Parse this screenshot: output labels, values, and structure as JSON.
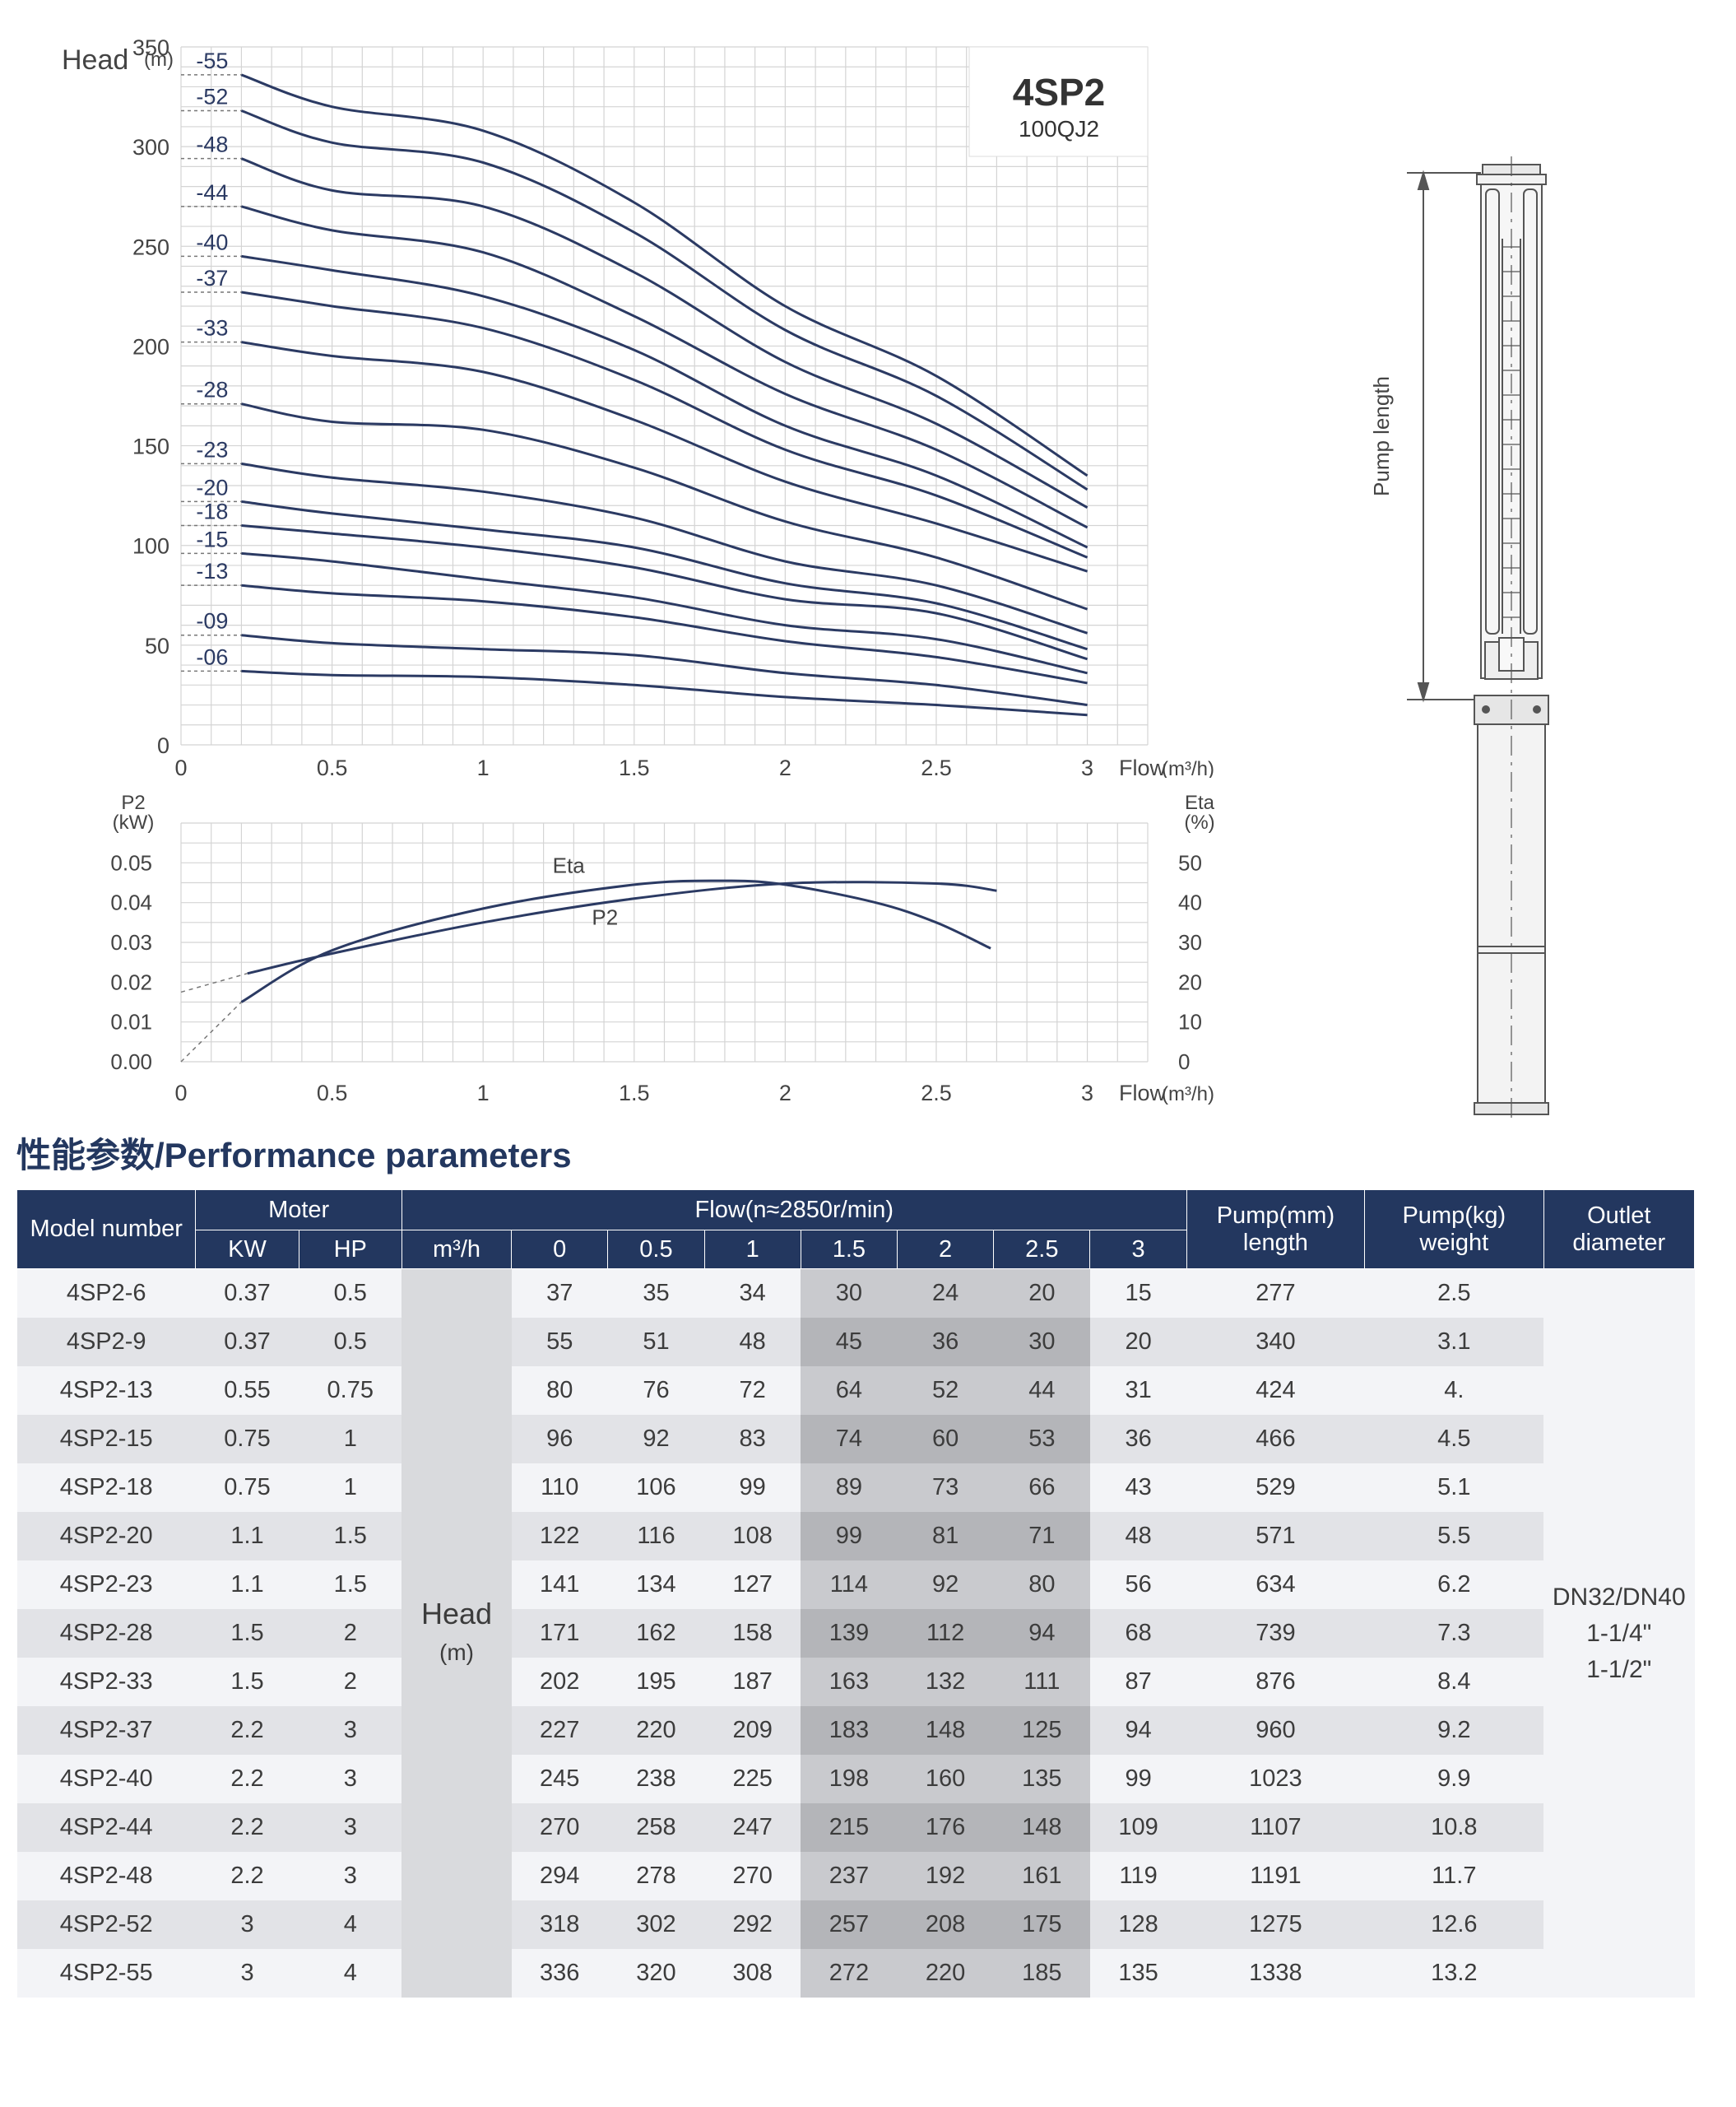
{
  "chart_data": [
    {
      "type": "line",
      "title": "4SP2",
      "subtitle": "100QJ2",
      "ylabel": "Head",
      "ylabel_unit": "(m)",
      "xlabel": "Flow",
      "xlabel_unit": "(m³/h)",
      "xlim": [
        0,
        3.2
      ],
      "ylim": [
        0,
        350
      ],
      "x_ticks": [
        0,
        0.5,
        1,
        1.5,
        2,
        2.5,
        3
      ],
      "y_ticks": [
        0,
        50,
        100,
        150,
        200,
        250,
        300,
        350
      ],
      "grid": true,
      "x": [
        0,
        0.5,
        1,
        1.5,
        2,
        2.5,
        3
      ],
      "series": [
        {
          "name": "-55",
          "values": [
            336,
            320,
            308,
            272,
            220,
            185,
            135
          ]
        },
        {
          "name": "-52",
          "values": [
            318,
            302,
            292,
            257,
            208,
            175,
            128
          ]
        },
        {
          "name": "-48",
          "values": [
            294,
            278,
            270,
            237,
            192,
            161,
            119
          ]
        },
        {
          "name": "-44",
          "values": [
            270,
            258,
            247,
            215,
            176,
            148,
            109
          ]
        },
        {
          "name": "-40",
          "values": [
            245,
            238,
            225,
            198,
            160,
            135,
            99
          ]
        },
        {
          "name": "-37",
          "values": [
            227,
            220,
            209,
            183,
            148,
            125,
            94
          ]
        },
        {
          "name": "-33",
          "values": [
            202,
            195,
            187,
            163,
            132,
            111,
            87
          ]
        },
        {
          "name": "-28",
          "values": [
            171,
            162,
            158,
            139,
            112,
            94,
            68
          ]
        },
        {
          "name": "-23",
          "values": [
            141,
            134,
            127,
            114,
            92,
            80,
            56
          ]
        },
        {
          "name": "-20",
          "values": [
            122,
            116,
            108,
            99,
            81,
            71,
            48
          ]
        },
        {
          "name": "-18",
          "values": [
            110,
            106,
            99,
            89,
            73,
            66,
            43
          ]
        },
        {
          "name": "-15",
          "values": [
            96,
            92,
            83,
            74,
            60,
            53,
            36
          ]
        },
        {
          "name": "-13",
          "values": [
            80,
            76,
            72,
            64,
            52,
            44,
            31
          ]
        },
        {
          "name": "-09",
          "values": [
            55,
            51,
            48,
            45,
            36,
            30,
            20
          ]
        },
        {
          "name": "-06",
          "values": [
            37,
            35,
            34,
            30,
            24,
            20,
            15
          ]
        }
      ]
    },
    {
      "type": "line",
      "ylabel": "P2",
      "ylabel_unit": "(kW)",
      "y2label": "Eta",
      "y2label_unit": "(%)",
      "xlabel": "Flow",
      "xlabel_unit": "(m³/h)",
      "xlim": [
        0,
        3.2
      ],
      "ylim": [
        0,
        0.06
      ],
      "y2lim": [
        0,
        60
      ],
      "x_ticks": [
        0,
        0.5,
        1,
        1.5,
        2,
        2.5,
        3
      ],
      "y_ticks": [
        "0.00",
        "0.01",
        "0.02",
        "0.03",
        "0.04",
        "0.05"
      ],
      "y2_ticks": [
        "0",
        "10",
        "20",
        "30",
        "40",
        "50"
      ],
      "grid": true,
      "series": [
        {
          "name": "P2",
          "axis": "left",
          "x": [
            0.22,
            0.5,
            1.0,
            1.5,
            2.0,
            2.5,
            2.7
          ],
          "values": [
            0.0222,
            0.0272,
            0.035,
            0.041,
            0.0448,
            0.0448,
            0.043
          ],
          "dashed_extension": {
            "x": [
              0,
              0.22
            ],
            "values": [
              0.0175,
              0.0222
            ]
          }
        },
        {
          "name": "Eta",
          "axis": "right",
          "x": [
            0.2,
            0.5,
            1.0,
            1.5,
            1.8,
            2.0,
            2.3,
            2.5,
            2.68
          ],
          "values": [
            15,
            28,
            38.5,
            44.5,
            45.5,
            44.5,
            40,
            35,
            28.5
          ],
          "dashed_extension": {
            "x": [
              0,
              0.2
            ],
            "values": [
              0,
              15
            ]
          }
        }
      ]
    }
  ],
  "drawing": {
    "dimension_label": "Pump length"
  },
  "section_title": "性能参数/Performance parameters",
  "table": {
    "model_header": "Model number",
    "motor_header": "Moter",
    "kw_header": "KW",
    "hp_header": "HP",
    "flow_header": "Flow(n≈2850r/min)",
    "unit_header": "m³/h",
    "flows": [
      "0",
      "0.5",
      "1",
      "1.5",
      "2",
      "2.5",
      "3"
    ],
    "pump_length_header": {
      "line1": "Pump",
      "line2": "length",
      "unit": "(mm)"
    },
    "pump_weight_header": {
      "line1": "Pump",
      "line2": "weight",
      "unit": "(kg)"
    },
    "outlet_header": {
      "line1": "Outlet",
      "line2": "diameter"
    },
    "head_label": "Head",
    "head_unit": "(m)",
    "outlet_value": [
      "DN32/DN40",
      "1-1/4\"",
      "1-1/2\""
    ],
    "rows": [
      {
        "model": "4SP2-6",
        "kw": "0.37",
        "hp": "0.5",
        "heads": [
          "37",
          "35",
          "34",
          "30",
          "24",
          "20",
          "15"
        ],
        "length": "277",
        "weight": "2.5"
      },
      {
        "model": "4SP2-9",
        "kw": "0.37",
        "hp": "0.5",
        "heads": [
          "55",
          "51",
          "48",
          "45",
          "36",
          "30",
          "20"
        ],
        "length": "340",
        "weight": "3.1"
      },
      {
        "model": "4SP2-13",
        "kw": "0.55",
        "hp": "0.75",
        "heads": [
          "80",
          "76",
          "72",
          "64",
          "52",
          "44",
          "31"
        ],
        "length": "424",
        "weight": "4."
      },
      {
        "model": "4SP2-15",
        "kw": "0.75",
        "hp": "1",
        "heads": [
          "96",
          "92",
          "83",
          "74",
          "60",
          "53",
          "36"
        ],
        "length": "466",
        "weight": "4.5"
      },
      {
        "model": "4SP2-18",
        "kw": "0.75",
        "hp": "1",
        "heads": [
          "110",
          "106",
          "99",
          "89",
          "73",
          "66",
          "43"
        ],
        "length": "529",
        "weight": "5.1"
      },
      {
        "model": "4SP2-20",
        "kw": "1.1",
        "hp": "1.5",
        "heads": [
          "122",
          "116",
          "108",
          "99",
          "81",
          "71",
          "48"
        ],
        "length": "571",
        "weight": "5.5"
      },
      {
        "model": "4SP2-23",
        "kw": "1.1",
        "hp": "1.5",
        "heads": [
          "141",
          "134",
          "127",
          "114",
          "92",
          "80",
          "56"
        ],
        "length": "634",
        "weight": "6.2"
      },
      {
        "model": "4SP2-28",
        "kw": "1.5",
        "hp": "2",
        "heads": [
          "171",
          "162",
          "158",
          "139",
          "112",
          "94",
          "68"
        ],
        "length": "739",
        "weight": "7.3"
      },
      {
        "model": "4SP2-33",
        "kw": "1.5",
        "hp": "2",
        "heads": [
          "202",
          "195",
          "187",
          "163",
          "132",
          "111",
          "87"
        ],
        "length": "876",
        "weight": "8.4"
      },
      {
        "model": "4SP2-37",
        "kw": "2.2",
        "hp": "3",
        "heads": [
          "227",
          "220",
          "209",
          "183",
          "148",
          "125",
          "94"
        ],
        "length": "960",
        "weight": "9.2"
      },
      {
        "model": "4SP2-40",
        "kw": "2.2",
        "hp": "3",
        "heads": [
          "245",
          "238",
          "225",
          "198",
          "160",
          "135",
          "99"
        ],
        "length": "1023",
        "weight": "9.9"
      },
      {
        "model": "4SP2-44",
        "kw": "2.2",
        "hp": "3",
        "heads": [
          "270",
          "258",
          "247",
          "215",
          "176",
          "148",
          "109"
        ],
        "length": "1107",
        "weight": "10.8"
      },
      {
        "model": "4SP2-48",
        "kw": "2.2",
        "hp": "3",
        "heads": [
          "294",
          "278",
          "270",
          "237",
          "192",
          "161",
          "119"
        ],
        "length": "1191",
        "weight": "11.7"
      },
      {
        "model": "4SP2-52",
        "kw": "3",
        "hp": "4",
        "heads": [
          "318",
          "302",
          "292",
          "257",
          "208",
          "175",
          "128"
        ],
        "length": "1275",
        "weight": "12.6"
      },
      {
        "model": "4SP2-55",
        "kw": "3",
        "hp": "4",
        "heads": [
          "336",
          "320",
          "308",
          "272",
          "220",
          "185",
          "135"
        ],
        "length": "1338",
        "weight": "13.2"
      }
    ]
  },
  "colors": {
    "curve": "#2b3a63",
    "header_bg": "#23375f",
    "grid": "#d4d4d4"
  }
}
